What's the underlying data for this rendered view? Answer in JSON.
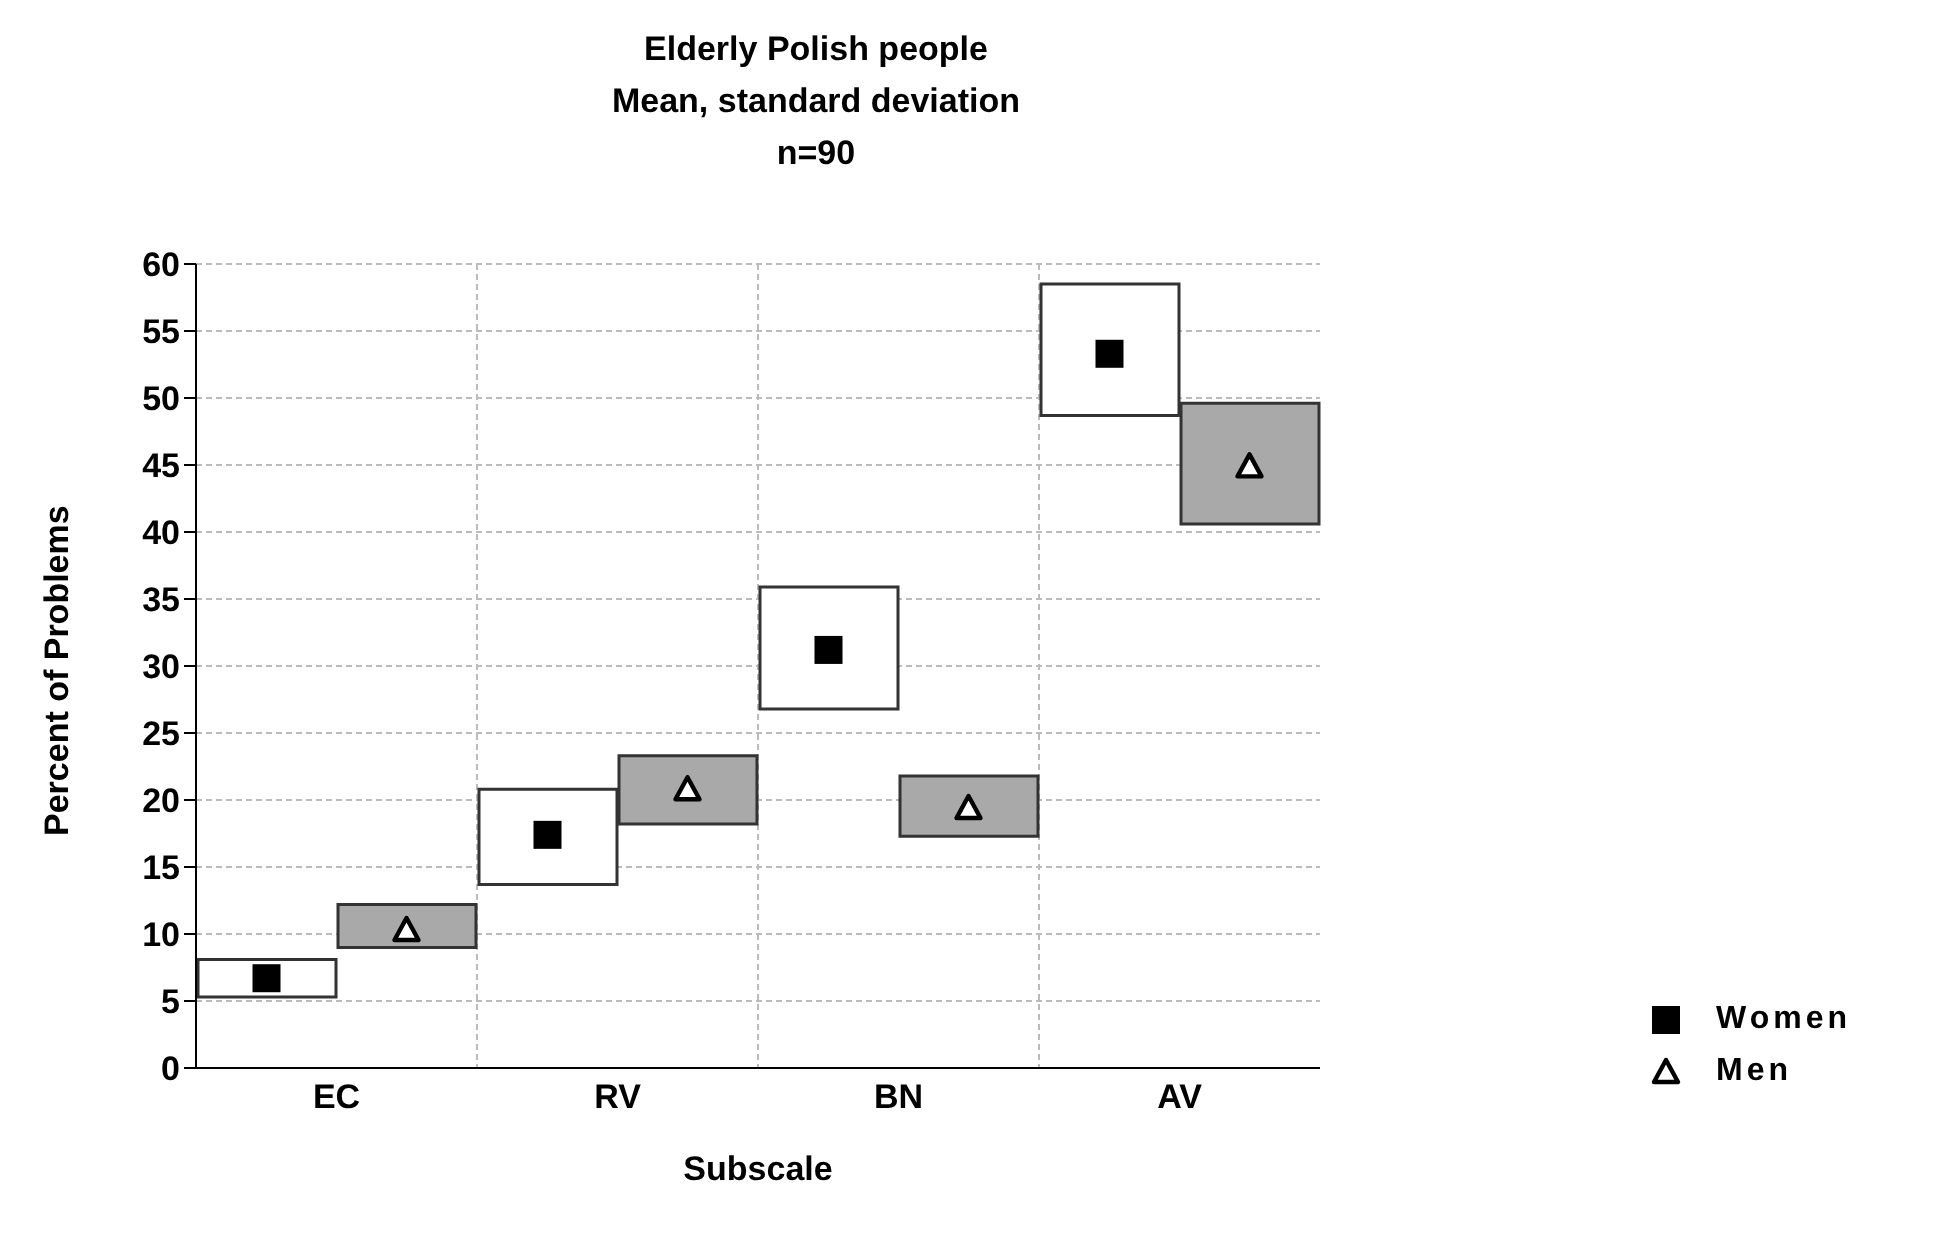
{
  "chart_data": {
    "type": "bar",
    "title": "Elderly Polish people",
    "subtitle": "Mean, standard deviation",
    "annotations": [
      "n=90"
    ],
    "xlabel": "Subscale",
    "ylabel": "Percent of Problems",
    "categories": [
      "EC",
      "RV",
      "BN",
      "AV"
    ],
    "series": [
      {
        "color": "#ffffff",
        "base": [
          5.3,
          13.7,
          26.8,
          48.7
        ],
        "values": [
          2.8,
          7.1,
          9.1,
          9.8
        ]
      },
      {
        "color": "#a9a9a9",
        "base": [
          9.0,
          18.2,
          17.3,
          40.6
        ],
        "values": [
          3.2,
          5.1,
          4.5,
          9.0
        ]
      },
      {
        "type": "scatter",
        "name": "Women",
        "color": "#000000",
        "marker": "square",
        "x": [
          "EC",
          "RV",
          "BN",
          "AV"
        ],
        "values": [
          6.7,
          17.4,
          31.2,
          53.3
        ]
      },
      {
        "type": "scatter",
        "name": "Men",
        "color": "#000000",
        "marker": "triangle",
        "x": [
          "EC",
          "RV",
          "BN",
          "AV"
        ],
        "values": [
          10.3,
          20.8,
          19.4,
          44.9
        ]
      }
    ],
    "ylim": [
      0,
      60
    ],
    "yticks": [
      0,
      5,
      10,
      15,
      20,
      25,
      30,
      35,
      40,
      45,
      50,
      55,
      60
    ],
    "grid": true,
    "legend": "bottom right"
  }
}
